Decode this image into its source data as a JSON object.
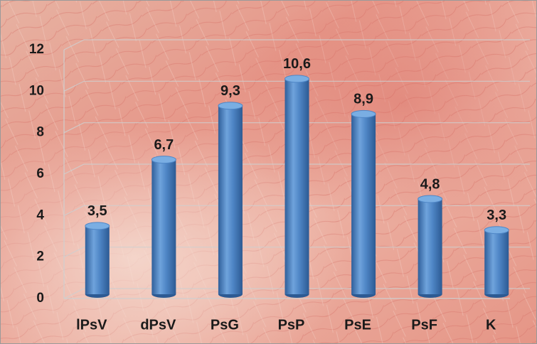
{
  "chart_data": {
    "type": "bar",
    "categories": [
      "lPsV",
      "dPsV",
      "PsG",
      "PsP",
      "PsE",
      "PsF",
      "K"
    ],
    "values": [
      3.5,
      6.7,
      9.3,
      10.6,
      8.9,
      4.8,
      3.3
    ],
    "value_labels": [
      "3,5",
      "6,7",
      "9,3",
      "10,6",
      "8,9",
      "4,8",
      "3,3"
    ],
    "color": "#4f86c6",
    "ylim": [
      0,
      12
    ],
    "yticks": [
      0,
      2,
      4,
      6,
      8,
      10,
      12
    ],
    "grid": true
  }
}
